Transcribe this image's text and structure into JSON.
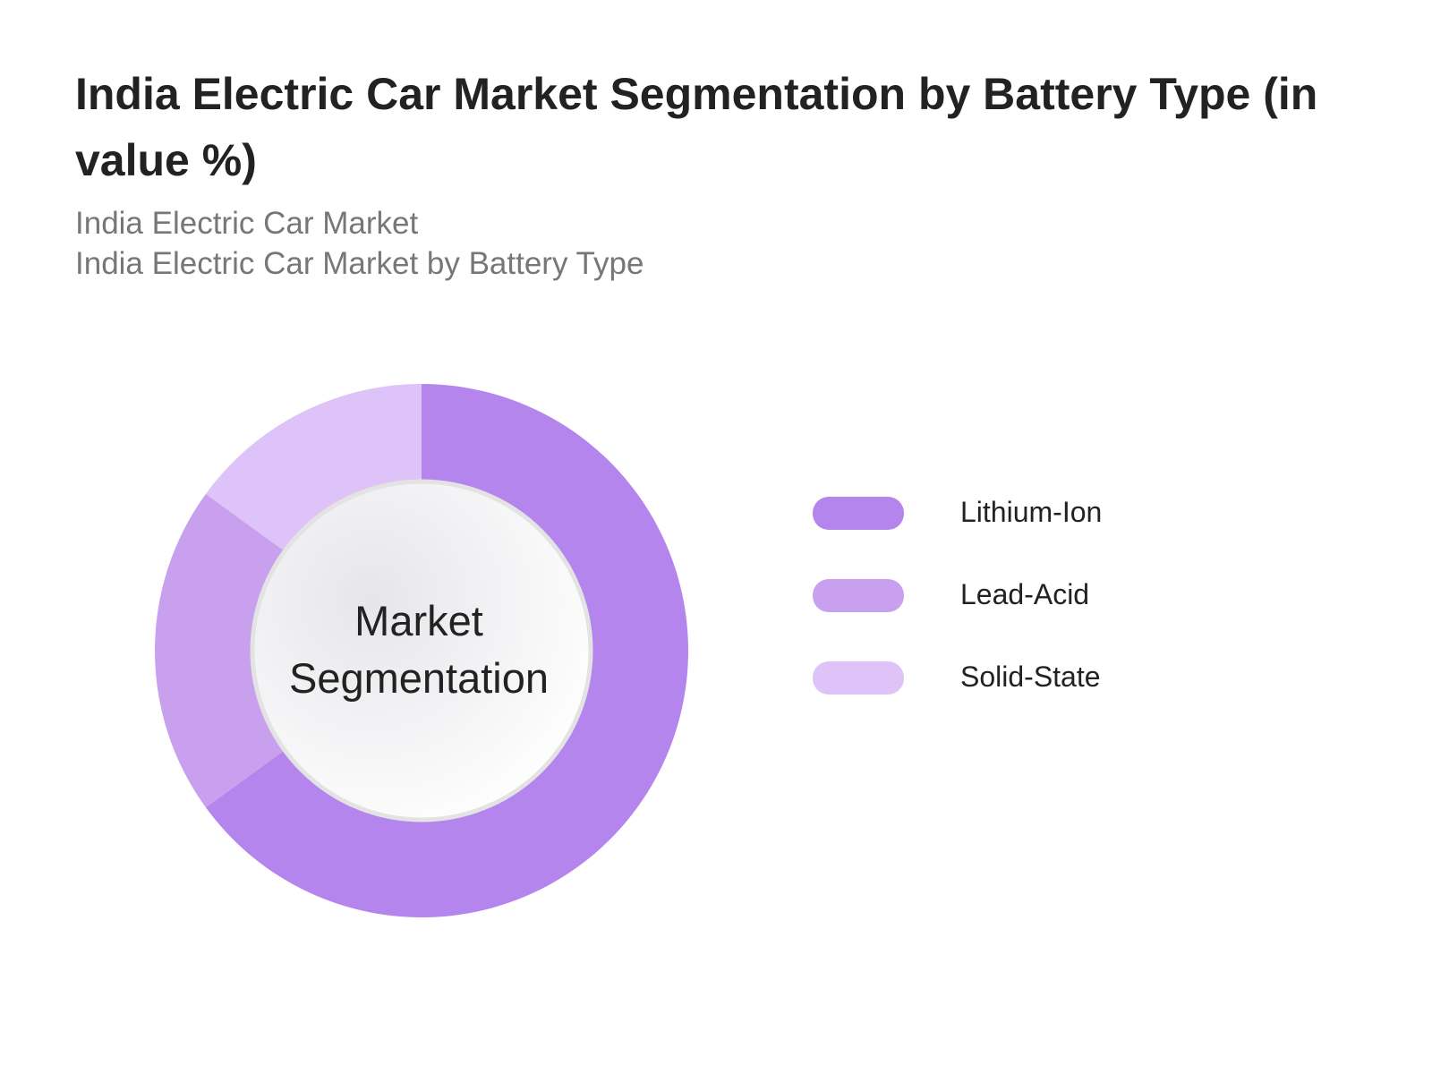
{
  "chart_data": {
    "type": "pie",
    "title": "India Electric Car Market Segmentation by Battery Type (in value %)",
    "subtitle": [
      "India Electric Car Market",
      "India Electric Car Market by Battery Type"
    ],
    "center_label": [
      "Market",
      "Segmentation"
    ],
    "categories": [
      "Lithium-Ion",
      "Lead-Acid",
      "Solid-State"
    ],
    "values": [
      65,
      20,
      15
    ],
    "colors": [
      "#b485ec",
      "#c9a0ee",
      "#ddc3f7"
    ],
    "legend_position": "right"
  }
}
